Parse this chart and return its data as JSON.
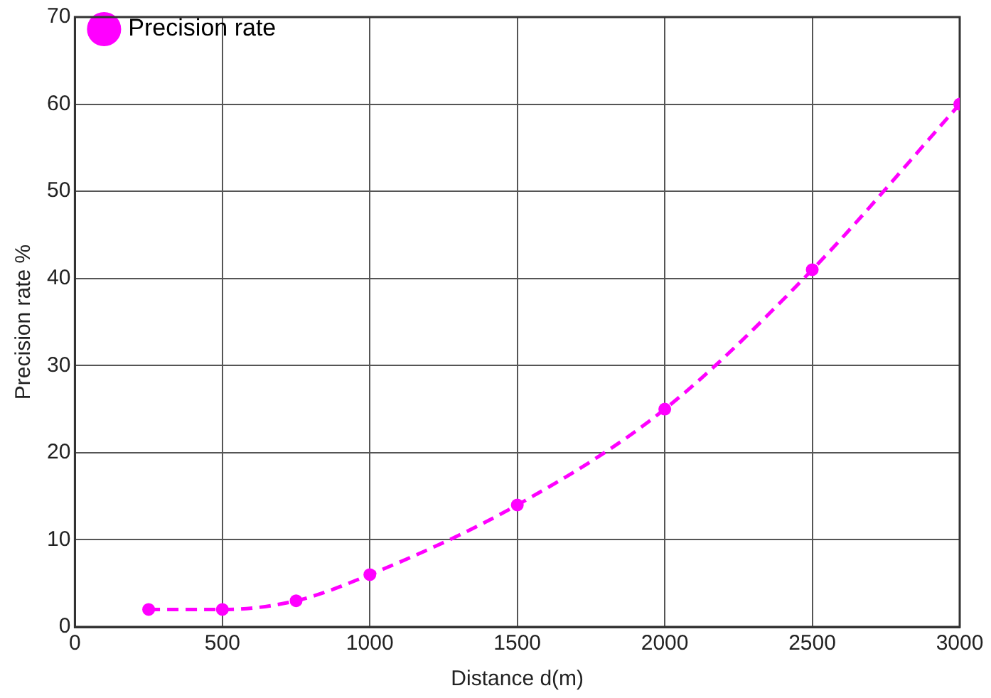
{
  "chart_data": {
    "type": "line",
    "xlabel": "Distance d(m)",
    "ylabel": "Precision rate %",
    "x": [
      250,
      500,
      750,
      1000,
      1500,
      2000,
      2500,
      3000
    ],
    "series": [
      {
        "name": "Precision rate",
        "color": "#ff00ff",
        "values": [
          2,
          2,
          3,
          6,
          14,
          25,
          41,
          60
        ]
      }
    ],
    "xlim": [
      0,
      3000
    ],
    "xticks": [
      0,
      500,
      1000,
      1500,
      2000,
      2500,
      3000
    ],
    "ylim": [
      0,
      70
    ],
    "yticks": [
      0,
      10,
      20,
      30,
      40,
      50,
      60,
      70
    ],
    "grid": true,
    "legend": "top left",
    "marker": "circle",
    "line_style": "dashed"
  }
}
